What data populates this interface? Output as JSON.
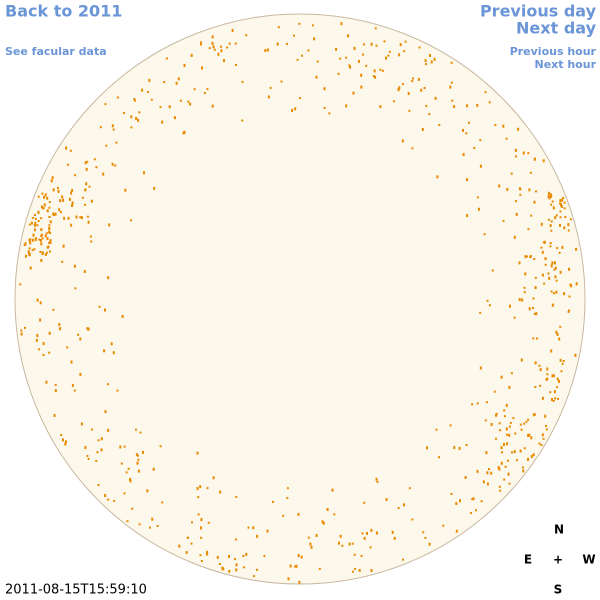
{
  "links": {
    "back": "Back to 2011",
    "facular": "See facular data",
    "prev_day": "Previous day",
    "next_day": "Next day",
    "prev_hour": "Previous hour",
    "next_hour": "Next hour"
  },
  "timestamp": "2011-08-15T15:59:10",
  "compass": {
    "n": "N",
    "e": "E",
    "center": "+",
    "w": "W",
    "s": "S"
  }
}
